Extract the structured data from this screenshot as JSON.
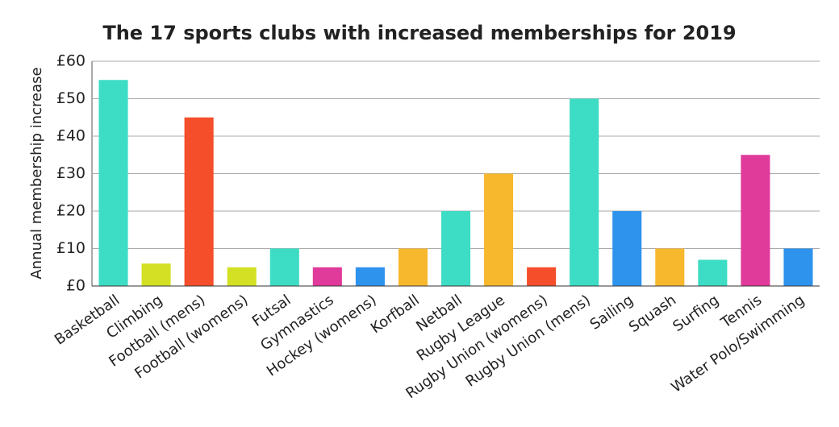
{
  "chart_data": {
    "type": "bar",
    "title": "The 17 sports clubs with increased memberships for 2019",
    "y_label": "Annual membership increase",
    "categories": [
      "Basketball",
      "Climbing",
      "Football (mens)",
      "Football (womens)",
      "Futsal",
      "Gymnastics",
      "Hockey (womens)",
      "Korfball",
      "Netball",
      "Rugby League",
      "Rugby Union (womens)",
      "Rugby Union (mens)",
      "Sailing",
      "Squash",
      "Surfing",
      "Tennis",
      "Water Polo/Swimming"
    ],
    "values": [
      55,
      6,
      45,
      5,
      10,
      5,
      5,
      10,
      20,
      30,
      5,
      50,
      20,
      10,
      7,
      35,
      10
    ],
    "colors": [
      "#3ddcc4",
      "#d4e024",
      "#f44e2a",
      "#d4e024",
      "#3ddcc4",
      "#e03a9a",
      "#2e93ec",
      "#f7b82d",
      "#3ddcc4",
      "#f7b82d",
      "#f44e2a",
      "#3ddcc4",
      "#2e93ec",
      "#f7b82d",
      "#3ddcc4",
      "#e03a9a",
      "#2e93ec"
    ],
    "ylim": [
      0,
      60
    ],
    "yticks": [
      {
        "value": 0,
        "label": "£0"
      },
      {
        "value": 10,
        "label": "£10"
      },
      {
        "value": 20,
        "label": "£20"
      },
      {
        "value": 30,
        "label": "£30"
      },
      {
        "value": 40,
        "label": "£40"
      },
      {
        "value": 50,
        "label": "£50"
      },
      {
        "value": 60,
        "label": "£60"
      }
    ],
    "grid": true
  }
}
